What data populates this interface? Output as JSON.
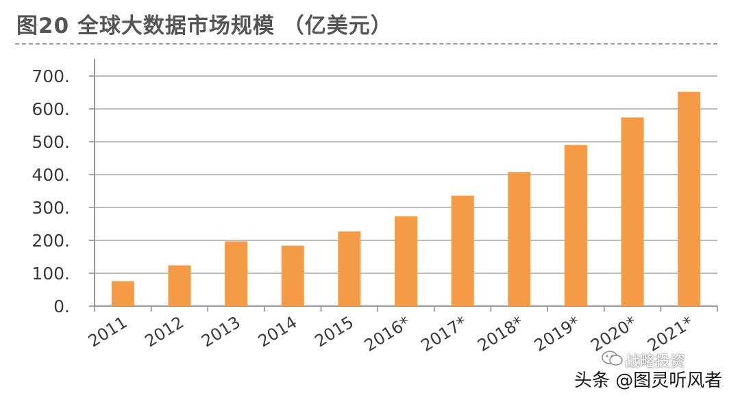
{
  "chart_data": {
    "type": "bar",
    "title": "图20 全球大数据市场规模 （亿美元）",
    "categories": [
      "2011",
      "2012",
      "2013",
      "2014",
      "2015",
      "2016*",
      "2017*",
      "2018*",
      "2019*",
      "2020*",
      "2021*"
    ],
    "values": [
      76,
      124,
      197,
      184,
      227,
      273,
      336,
      408,
      490,
      574,
      652
    ],
    "ylim": [
      0,
      700
    ],
    "yticks": [
      0,
      100,
      200,
      300,
      400,
      500,
      600,
      700
    ],
    "ytick_labels": [
      "0.",
      "100.",
      "200.",
      "300.",
      "400.",
      "500.",
      "600.",
      "700."
    ],
    "xlabel": "",
    "ylabel": "",
    "grid": true,
    "bar_color": "#f59a45"
  },
  "watermark": {
    "text": "头条 @图灵听风者",
    "sub_text": "战略投资",
    "icon": "wechat-icon"
  }
}
